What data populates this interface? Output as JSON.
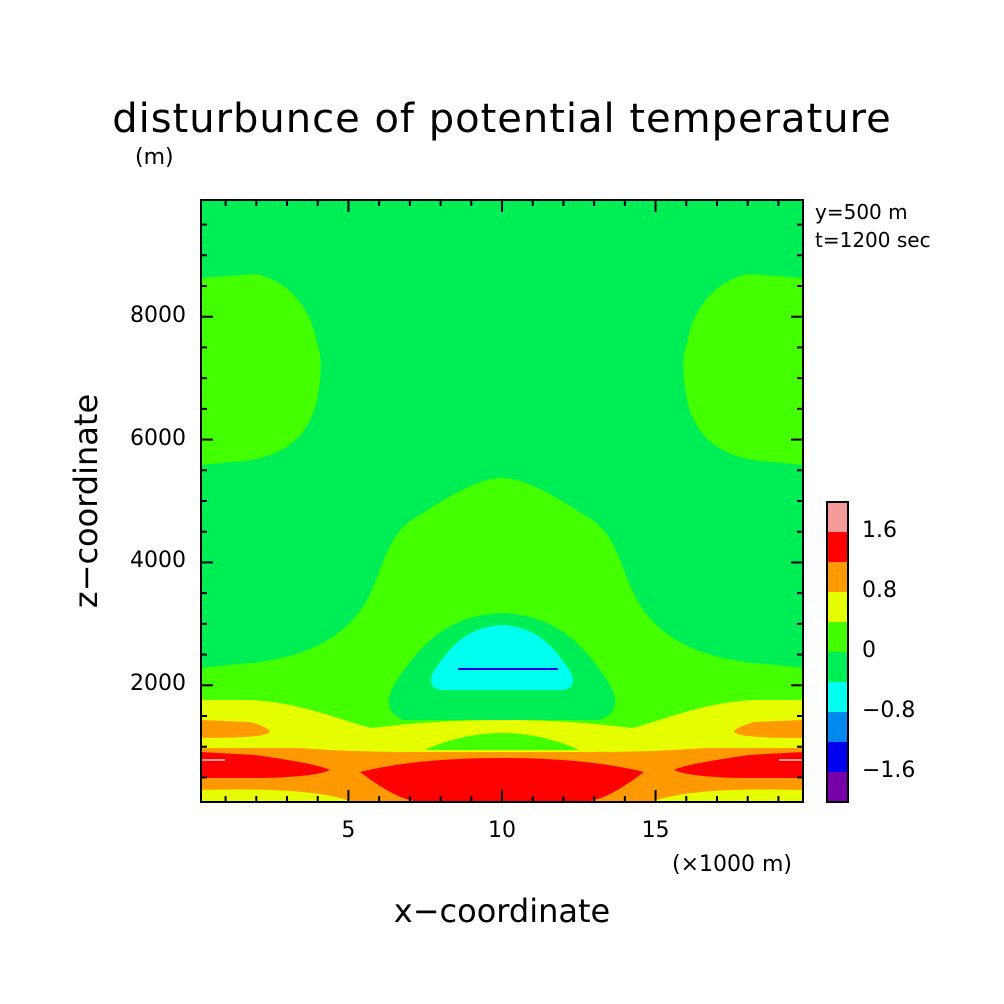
{
  "chart_data": {
    "type": "heatmap",
    "title": "disturbunce of potential temperature",
    "z_unit": "(m)",
    "x_unit": "(×1000 m)",
    "xlabel": "x−coordinate",
    "ylabel": "z−coordinate",
    "annotations": [
      "y=500 m",
      "t=1200 sec"
    ],
    "xlim": [
      0.2,
      19.8
    ],
    "ylim": [
      100,
      9900
    ],
    "xticks": [
      {
        "value": 5,
        "label": "5"
      },
      {
        "value": 10,
        "label": "10"
      },
      {
        "value": 15,
        "label": "15"
      }
    ],
    "yticks": [
      {
        "value": 2000,
        "label": "2000"
      },
      {
        "value": 4000,
        "label": "4000"
      },
      {
        "value": 6000,
        "label": "6000"
      },
      {
        "value": 8000,
        "label": "8000"
      }
    ],
    "colorbar": {
      "levels": [
        {
          "color": "#f49a9a"
        },
        {
          "color": "#ff0000"
        },
        {
          "color": "#ff9900"
        },
        {
          "color": "#e6ff00"
        },
        {
          "color": "#44ff00"
        },
        {
          "color": "#00ee55"
        },
        {
          "color": "#00ffee"
        },
        {
          "color": "#0088ee"
        },
        {
          "color": "#0000ee"
        },
        {
          "color": "#7700aa"
        }
      ],
      "labels": [
        "1.6",
        "0.8",
        "0",
        "−0.8",
        "−1.6"
      ]
    },
    "regions": [
      {
        "name": "background",
        "color": "#00ee55"
      },
      {
        "name": "upper-left-lobe",
        "color": "#44ff00"
      },
      {
        "name": "upper-right-lobe",
        "color": "#44ff00"
      },
      {
        "name": "central-dome",
        "color": "#44ff00"
      },
      {
        "name": "central-negative-ring",
        "color": "#00ee55"
      },
      {
        "name": "central-cold-core",
        "color": "#00ffee"
      },
      {
        "name": "lower-yellow-band",
        "color": "#e6ff00"
      },
      {
        "name": "lower-orange-band",
        "color": "#ff9900"
      },
      {
        "name": "lower-red-bands",
        "color": "#ff0000"
      }
    ]
  }
}
